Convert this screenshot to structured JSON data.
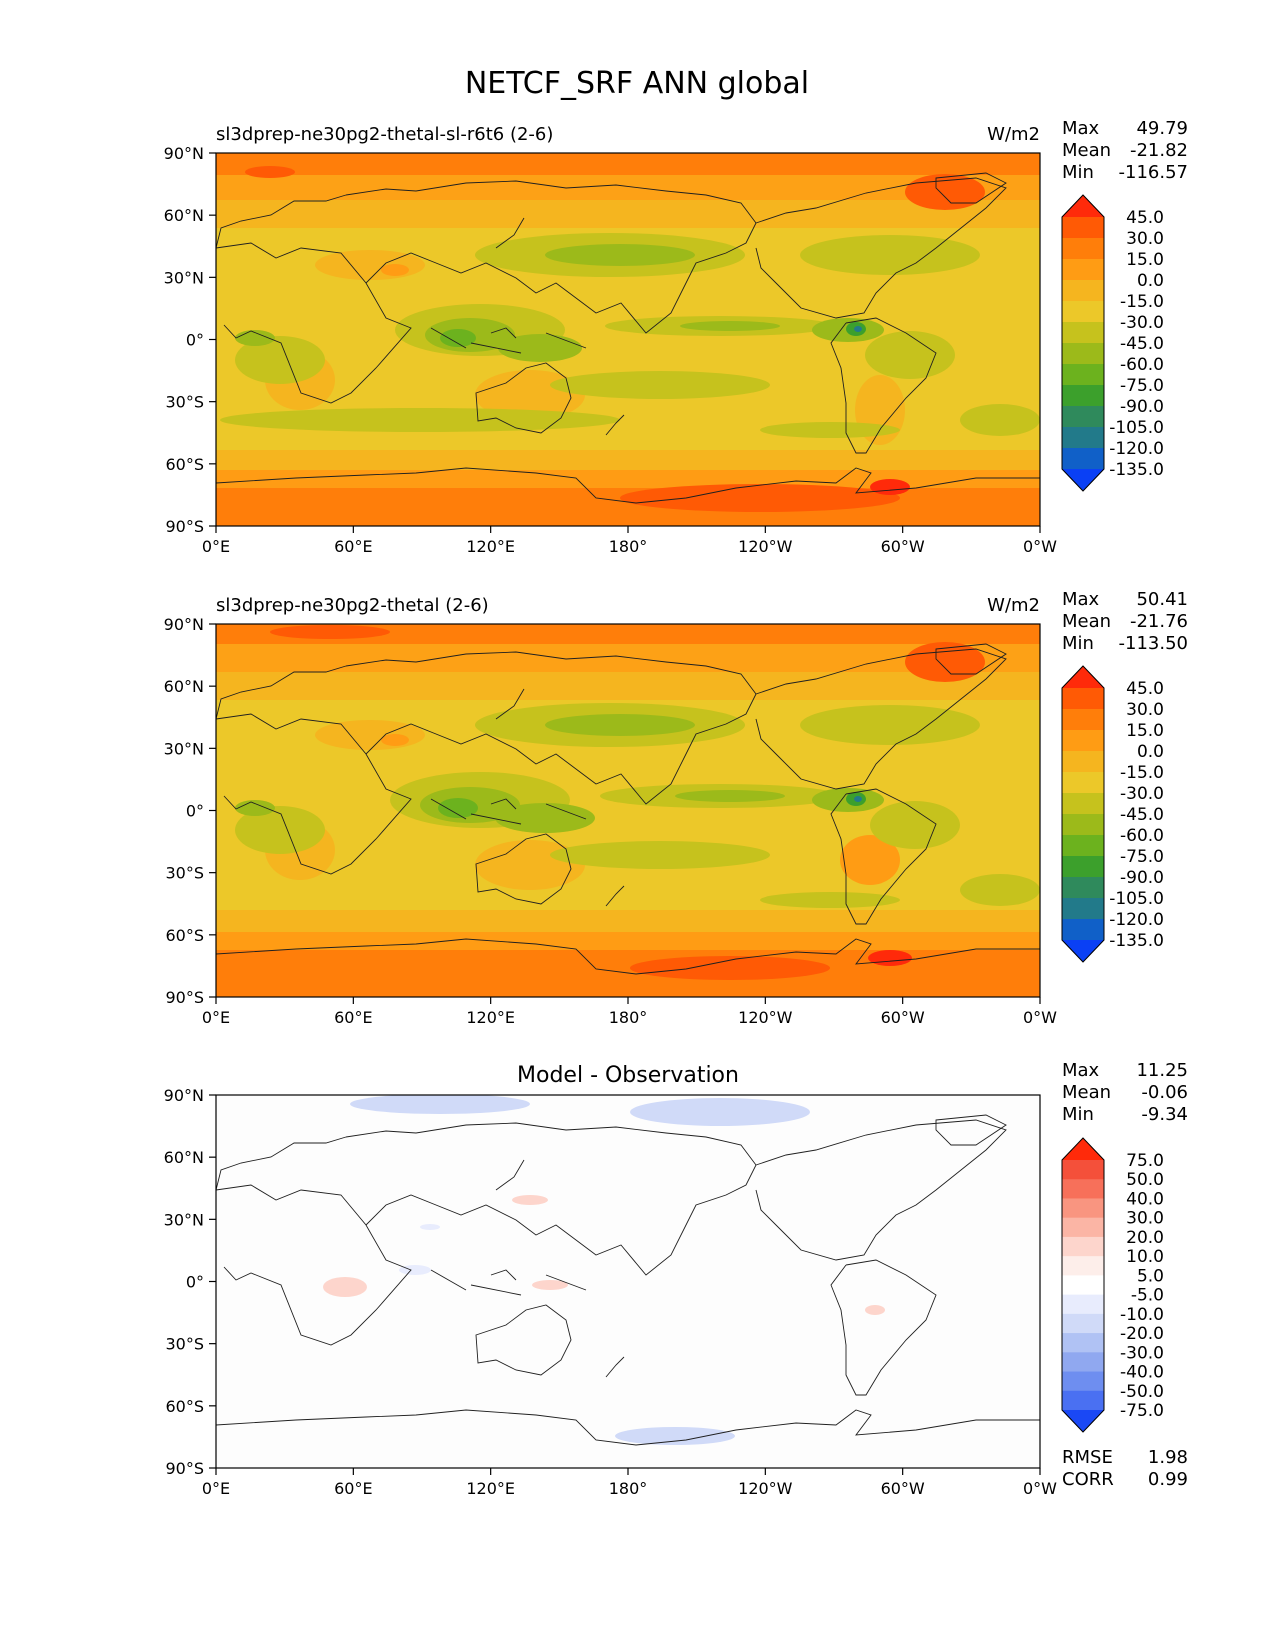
{
  "figure": {
    "title": "NETCF_SRF ANN global"
  },
  "axes": {
    "lat_labels": [
      "90°N",
      "60°N",
      "30°N",
      "0°",
      "30°S",
      "60°S",
      "90°S"
    ],
    "lon_labels": [
      "0°E",
      "60°E",
      "120°E",
      "180°",
      "120°W",
      "60°W",
      "0°W"
    ]
  },
  "panels": [
    {
      "title_left": "sl3dprep-ne30pg2-thetal-sl-r6t6 (2-6)",
      "units": "W/m2",
      "stats": [
        {
          "label": "Max",
          "value": "49.79"
        },
        {
          "label": "Mean",
          "value": "-21.82"
        },
        {
          "label": "Min",
          "value": "-116.57"
        }
      ],
      "colorbar": {
        "labels": [
          "45.0",
          "30.0",
          "15.0",
          "0.0",
          "-15.0",
          "-30.0",
          "-45.0",
          "-60.0",
          "-75.0",
          "-90.0",
          "-105.0",
          "-120.0",
          "-135.0"
        ],
        "colors": [
          "#ff2a0a",
          "#ff5a05",
          "#ff7e0a",
          "#ff9c14",
          "#f5b51f",
          "#ecc829",
          "#c6c21d",
          "#9cba1a",
          "#6cb21e",
          "#3ca02c",
          "#2f8a5c",
          "#227a8a",
          "#1060c8",
          "#0a40f5"
        ]
      }
    },
    {
      "title_left": "sl3dprep-ne30pg2-thetal (2-6)",
      "units": "W/m2",
      "stats": [
        {
          "label": "Max",
          "value": "50.41"
        },
        {
          "label": "Mean",
          "value": "-21.76"
        },
        {
          "label": "Min",
          "value": "-113.50"
        }
      ],
      "colorbar": {
        "labels": [
          "45.0",
          "30.0",
          "15.0",
          "0.0",
          "-15.0",
          "-30.0",
          "-45.0",
          "-60.0",
          "-75.0",
          "-90.0",
          "-105.0",
          "-120.0",
          "-135.0"
        ],
        "colors": [
          "#ff2a0a",
          "#ff5a05",
          "#ff7e0a",
          "#ff9c14",
          "#f5b51f",
          "#ecc829",
          "#c6c21d",
          "#9cba1a",
          "#6cb21e",
          "#3ca02c",
          "#2f8a5c",
          "#227a8a",
          "#1060c8",
          "#0a40f5"
        ]
      }
    },
    {
      "title_center": "Model - Observation",
      "stats": [
        {
          "label": "Max",
          "value": "11.25"
        },
        {
          "label": "Mean",
          "value": "-0.06"
        },
        {
          "label": "Min",
          "value": "-9.34"
        }
      ],
      "colorbar": {
        "labels": [
          "75.0",
          "50.0",
          "40.0",
          "30.0",
          "20.0",
          "10.0",
          "5.0",
          "-5.0",
          "-10.0",
          "-20.0",
          "-30.0",
          "-40.0",
          "-50.0",
          "-75.0"
        ],
        "colors": [
          "#ff2a0a",
          "#f4503a",
          "#f7705a",
          "#f99580",
          "#fbb5a5",
          "#fdd5cc",
          "#fdeeea",
          "#ffffff",
          "#e8ecfd",
          "#d0daf8",
          "#b0c2f4",
          "#90a8f0",
          "#6e8ef0",
          "#4a70f2",
          "#1a48f5"
        ]
      },
      "rmse": {
        "label": "RMSE",
        "value": "1.98"
      },
      "corr": {
        "label": "CORR",
        "value": "0.99"
      }
    }
  ]
}
